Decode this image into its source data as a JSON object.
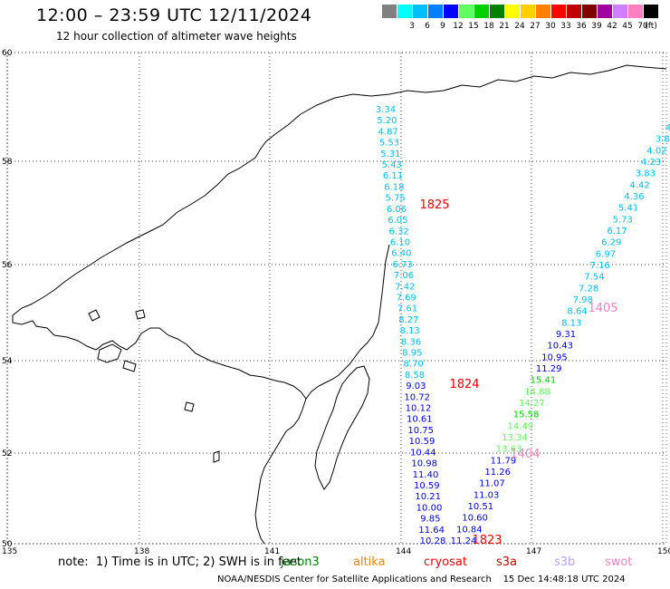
{
  "header": {
    "title": "12:00 – 23:59 UTC 12/11/2024",
    "subtitle": "12 hour collection of altimeter wave heights"
  },
  "color_scale": {
    "unit": "(ft)",
    "items": [
      {
        "label": "",
        "color": "#808080"
      },
      {
        "label": "3",
        "color": "#00ffff"
      },
      {
        "label": "6",
        "color": "#00c0ff"
      },
      {
        "label": "9",
        "color": "#0080ff"
      },
      {
        "label": "12",
        "color": "#0000ff"
      },
      {
        "label": "15",
        "color": "#60ff60"
      },
      {
        "label": "18",
        "color": "#00d000"
      },
      {
        "label": "21",
        "color": "#008000"
      },
      {
        "label": "24",
        "color": "#ffff00"
      },
      {
        "label": "27",
        "color": "#ffd000"
      },
      {
        "label": "30",
        "color": "#ff8000"
      },
      {
        "label": "33",
        "color": "#ff0000"
      },
      {
        "label": "36",
        "color": "#c00000"
      },
      {
        "label": "39",
        "color": "#800000"
      },
      {
        "label": "42",
        "color": "#a000a0"
      },
      {
        "label": "45",
        "color": "#d080ff"
      },
      {
        "label": "70",
        "color": "#ff80c0"
      },
      {
        "label": "",
        "color": "#000000"
      }
    ]
  },
  "map": {
    "lat_labels": [
      "60",
      "58",
      "56",
      "54",
      "52",
      "50"
    ],
    "lon_labels": [
      "135",
      "138",
      "141",
      "144",
      "147",
      "150"
    ],
    "track_a": [
      {
        "v": "3.34",
        "c": "#00c0ff"
      },
      {
        "v": "5.20",
        "c": "#00c0ff"
      },
      {
        "v": "4.87",
        "c": "#00c0ff"
      },
      {
        "v": "5.53",
        "c": "#00c0ff"
      },
      {
        "v": "5.31",
        "c": "#00c0ff"
      },
      {
        "v": "5.43",
        "c": "#00c0ff"
      },
      {
        "v": "6.11",
        "c": "#00c0ff"
      },
      {
        "v": "6.18",
        "c": "#00c0ff"
      },
      {
        "v": "5.75",
        "c": "#00c0ff"
      },
      {
        "v": "6.06",
        "c": "#00c0ff"
      },
      {
        "v": "6.05",
        "c": "#00c0ff"
      },
      {
        "v": "6.32",
        "c": "#00c0ff"
      },
      {
        "v": "6.10",
        "c": "#00c0ff"
      },
      {
        "v": "6.40",
        "c": "#00c0ff"
      },
      {
        "v": "6.73",
        "c": "#00c0ff"
      },
      {
        "v": "7.06",
        "c": "#00c0ff"
      },
      {
        "v": "7.42",
        "c": "#00c0ff"
      },
      {
        "v": "7.69",
        "c": "#00c0ff"
      },
      {
        "v": "7.61",
        "c": "#00c0ff"
      },
      {
        "v": "8.27",
        "c": "#00c0ff"
      },
      {
        "v": "8.13",
        "c": "#00c0ff"
      },
      {
        "v": "8.36",
        "c": "#00c0ff"
      },
      {
        "v": "8.95",
        "c": "#00c0ff"
      },
      {
        "v": "8.70",
        "c": "#00c0ff"
      },
      {
        "v": "8.58",
        "c": "#00c0ff"
      },
      {
        "v": "9.03",
        "c": "#0000ff"
      },
      {
        "v": "10.72",
        "c": "#0000ff"
      },
      {
        "v": "10.12",
        "c": "#0000ff"
      },
      {
        "v": "10.61",
        "c": "#0000ff"
      },
      {
        "v": "10.75",
        "c": "#0000ff"
      },
      {
        "v": "10.59",
        "c": "#0000ff"
      },
      {
        "v": "10.44",
        "c": "#0000ff"
      },
      {
        "v": "10.98",
        "c": "#0000ff"
      },
      {
        "v": "11.40",
        "c": "#0000ff"
      },
      {
        "v": "10.59",
        "c": "#0000ff"
      },
      {
        "v": "10.21",
        "c": "#0000ff"
      },
      {
        "v": "10.00",
        "c": "#0000ff"
      },
      {
        "v": "9.85",
        "c": "#0000ff"
      },
      {
        "v": "11.64",
        "c": "#0000ff"
      },
      {
        "v": "10.28",
        "c": "#0000ff"
      }
    ],
    "track_b": [
      {
        "v": "4",
        "c": "#00c0ff"
      },
      {
        "v": "3.8",
        "c": "#00c0ff"
      },
      {
        "v": "4.02",
        "c": "#00c0ff"
      },
      {
        "v": "4.23",
        "c": "#00c0ff"
      },
      {
        "v": "3.83",
        "c": "#00c0ff"
      },
      {
        "v": "4.42",
        "c": "#00c0ff"
      },
      {
        "v": "4.36",
        "c": "#00c0ff"
      },
      {
        "v": "5.41",
        "c": "#00c0ff"
      },
      {
        "v": "5.73",
        "c": "#00c0ff"
      },
      {
        "v": "6.17",
        "c": "#00c0ff"
      },
      {
        "v": "6.29",
        "c": "#00c0ff"
      },
      {
        "v": "6.97",
        "c": "#00c0ff"
      },
      {
        "v": "7.16",
        "c": "#00c0ff"
      },
      {
        "v": "7.54",
        "c": "#00c0ff"
      },
      {
        "v": "7.28",
        "c": "#00c0ff"
      },
      {
        "v": "7.98",
        "c": "#00c0ff"
      },
      {
        "v": "8.64",
        "c": "#00c0ff"
      },
      {
        "v": "8.13",
        "c": "#00c0ff"
      },
      {
        "v": "9.31",
        "c": "#0000ff"
      },
      {
        "v": "10.43",
        "c": "#0000ff"
      },
      {
        "v": "10.95",
        "c": "#0000ff"
      },
      {
        "v": "11.29",
        "c": "#0000ff"
      },
      {
        "v": "15.41",
        "c": "#00d000"
      },
      {
        "v": "14.88",
        "c": "#60ff60"
      },
      {
        "v": "14.27",
        "c": "#60ff60"
      },
      {
        "v": "15.58",
        "c": "#00d000"
      },
      {
        "v": "14.49",
        "c": "#60ff60"
      },
      {
        "v": "13.34",
        "c": "#60ff60"
      },
      {
        "v": "13.63",
        "c": "#60ff60"
      },
      {
        "v": "11.79",
        "c": "#0000ff"
      },
      {
        "v": "11.26",
        "c": "#0000ff"
      },
      {
        "v": "11.07",
        "c": "#0000ff"
      },
      {
        "v": "11.03",
        "c": "#0000ff"
      },
      {
        "v": "10.51",
        "c": "#0000ff"
      },
      {
        "v": "10.60",
        "c": "#0000ff"
      },
      {
        "v": "10.84",
        "c": "#0000ff"
      },
      {
        "v": "11.24",
        "c": "#0000ff"
      }
    ],
    "time_labels": [
      {
        "text": "1825",
        "color": "#ff0000"
      },
      {
        "text": "1824",
        "color": "#ff0000"
      },
      {
        "text": "1405",
        "color": "#ff80c0"
      },
      {
        "text": "1404",
        "color": "#ff80c0"
      },
      {
        "text": "1823",
        "color": "#ff0000"
      }
    ]
  },
  "legend": {
    "note": "note:  1) Time is in UTC; 2) SWH is in feet",
    "satellites": [
      {
        "name": "jason3",
        "color": "#008000"
      },
      {
        "name": "altika",
        "color": "#ff8000"
      },
      {
        "name": "cryosat",
        "color": "#ff0000"
      },
      {
        "name": "s3a",
        "color": "#c00000"
      },
      {
        "name": "s3b",
        "color": "#c0a0ff"
      },
      {
        "name": "swot",
        "color": "#ff80c0"
      }
    ]
  },
  "footer": "NOAA/NESDIS Center for Satellite Applications and Research    15 Dec 14:48:18 UTC 2024"
}
